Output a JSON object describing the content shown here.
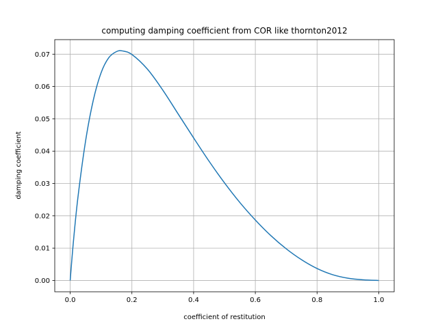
{
  "chart_data": {
    "type": "line",
    "title": "computing damping coefficient from COR like thornton2012",
    "xlabel": "coefficient of restitution",
    "ylabel": "damping coefficient",
    "xlim": [
      -0.05,
      1.05
    ],
    "ylim": [
      -0.0035,
      0.0745
    ],
    "x_ticks": [
      0.0,
      0.2,
      0.4,
      0.6,
      0.8,
      1.0
    ],
    "x_tick_labels": [
      "0.0",
      "0.2",
      "0.4",
      "0.6",
      "0.8",
      "1.0"
    ],
    "y_ticks": [
      0.0,
      0.01,
      0.02,
      0.03,
      0.04,
      0.05,
      0.06,
      0.07
    ],
    "y_tick_labels": [
      "0.00",
      "0.01",
      "0.02",
      "0.03",
      "0.04",
      "0.05",
      "0.06",
      "0.07"
    ],
    "grid": true,
    "line_color": "#1f77b4",
    "x": [
      0.0,
      0.01,
      0.025,
      0.05,
      0.075,
      0.1,
      0.125,
      0.15,
      0.17,
      0.2,
      0.25,
      0.3,
      0.35,
      0.4,
      0.45,
      0.5,
      0.55,
      0.6,
      0.65,
      0.7,
      0.75,
      0.8,
      0.85,
      0.9,
      0.95,
      1.0
    ],
    "y": [
      0.0,
      0.0115,
      0.0256,
      0.0432,
      0.0558,
      0.0642,
      0.0689,
      0.0708,
      0.071,
      0.0699,
      0.0654,
      0.0589,
      0.0515,
      0.0441,
      0.0369,
      0.0302,
      0.0241,
      0.0187,
      0.0139,
      0.0098,
      0.0064,
      0.0037,
      0.0018,
      0.0007,
      0.0002,
      0.0
    ]
  }
}
